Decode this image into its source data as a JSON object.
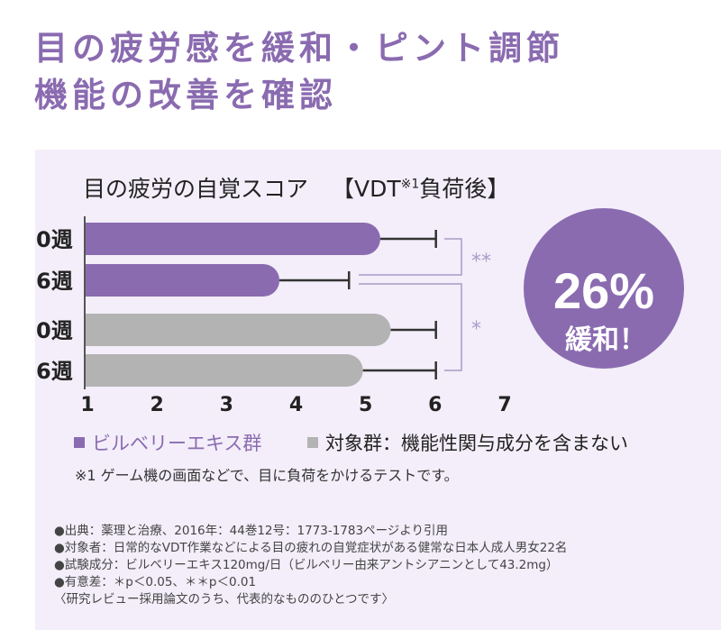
{
  "headline": {
    "line1": "目の疲労感を緩和・ピント調節",
    "line2": "機能の改善を確認"
  },
  "chart_title": {
    "main": "目の疲労の自覚スコア",
    "bracket_text": "【VDT",
    "superscript": "※1",
    "suffix": "負荷後】"
  },
  "chart_data": {
    "type": "bar",
    "orientation": "horizontal",
    "categories": [
      "0週",
      "6週",
      "0週",
      "6週"
    ],
    "series": [
      {
        "name": "ビルベリーエキス群",
        "color": "#8a6bb0",
        "rows": [
          {
            "label": "0週",
            "value": 5.25,
            "error_max": 6.05
          },
          {
            "label": "6週",
            "value": 3.8,
            "error_max": 4.8
          }
        ]
      },
      {
        "name": "対象群：機能性関与成分を含まない",
        "color": "#b3b3b3",
        "rows": [
          {
            "label": "0週",
            "value": 5.4,
            "error_max": 6.05
          },
          {
            "label": "6週",
            "value": 5.0,
            "error_max": 6.05
          }
        ]
      }
    ],
    "x_ticks": [
      "1",
      "2",
      "3",
      "4",
      "5",
      "6",
      "7"
    ],
    "xlim": [
      1,
      7
    ],
    "significance": [
      "**",
      "*"
    ],
    "grid": false
  },
  "badge": {
    "value": "26%",
    "label": "緩和！",
    "color": "#8a6bb0"
  },
  "legend": {
    "item1": "ビルベリーエキス群",
    "item2": "対象群：機能性関与成分を含まない"
  },
  "footnote": "※1 ゲーム機の画面などで、目に負荷をかけるテストです。",
  "notes": [
    "●出典：薬理と治療、2016年：44巻12号：1773-1783ページより引用",
    "●対象者：日常的なVDT作業などによる目の疲れの自覚症状がある健常な日本人成人男女22名",
    "●試験成分：ビルベリーエキス120mg/日（ビルベリー由来アントシアニンとして43.2mg）",
    "●有意差：＊p＜0.05、＊＊p＜0.01",
    "〈研究レビュー採用論文のうち、代表的なもののひとつです〉"
  ]
}
